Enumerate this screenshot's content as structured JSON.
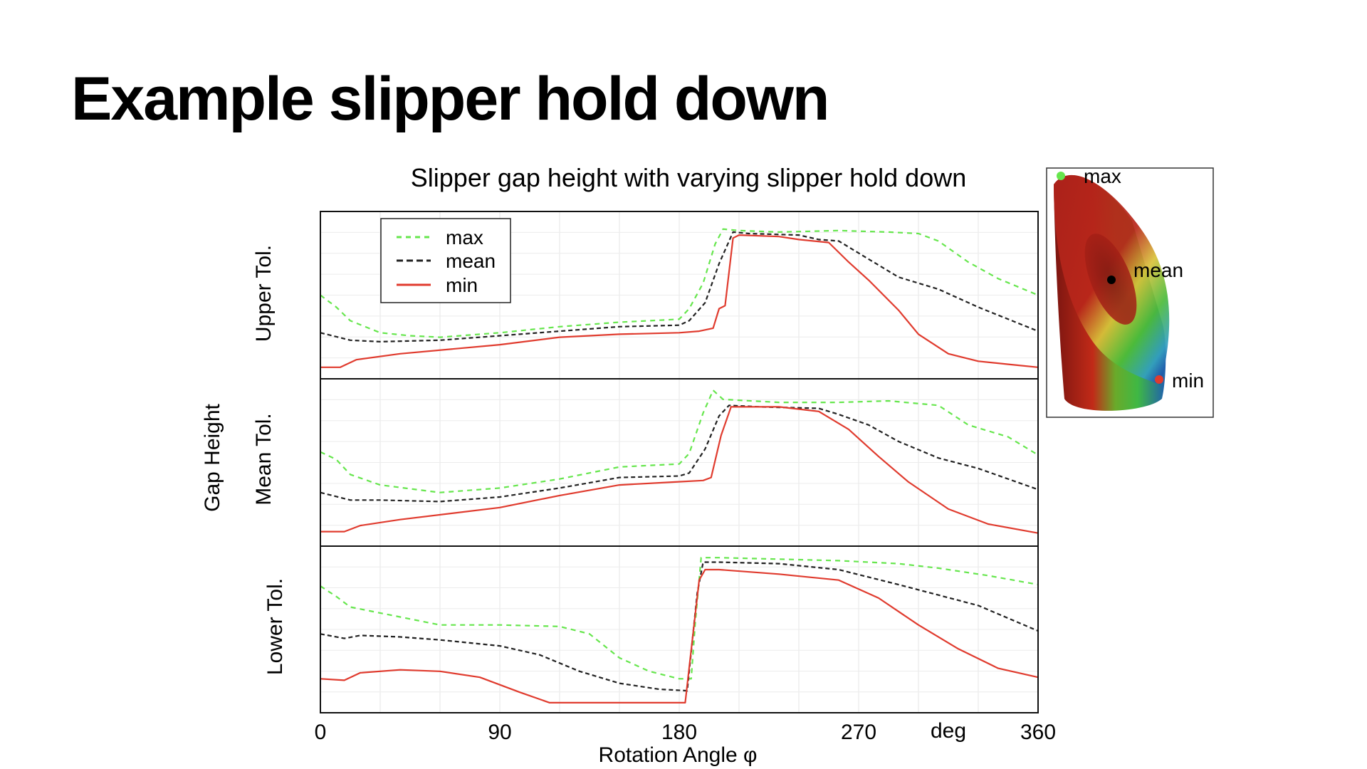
{
  "slide": {
    "title": "Example slipper hold down"
  },
  "chart_data": {
    "type": "line",
    "title": "Slipper gap height with varying slipper hold down",
    "xlabel": "Rotation Angle  φ",
    "ylabel": "Gap Height",
    "x_unit": "deg",
    "xlim": [
      0,
      360
    ],
    "x_ticks": [
      0,
      90,
      180,
      270,
      360
    ],
    "ylim": [
      0,
      1
    ],
    "y_ticks_labeled": false,
    "grid": true,
    "legend": {
      "placement": "top-left of first panel",
      "entries": [
        "max",
        "mean",
        "min"
      ]
    },
    "series_styles": {
      "max": {
        "color": "#66e64d",
        "dash": "7 6"
      },
      "mean": {
        "color": "#222222",
        "dash": "6 4"
      },
      "min": {
        "color": "#e03b2e",
        "dash": ""
      }
    },
    "panels": [
      {
        "label": "Upper  Tol.",
        "series": [
          {
            "name": "max",
            "points": [
              [
                0,
                0.5
              ],
              [
                8,
                0.42
              ],
              [
                15,
                0.33
              ],
              [
                30,
                0.25
              ],
              [
                45,
                0.23
              ],
              [
                60,
                0.22
              ],
              [
                90,
                0.25
              ],
              [
                120,
                0.29
              ],
              [
                150,
                0.32
              ],
              [
                180,
                0.34
              ],
              [
                185,
                0.41
              ],
              [
                192,
                0.58
              ],
              [
                198,
                0.84
              ],
              [
                202,
                0.94
              ],
              [
                210,
                0.93
              ],
              [
                230,
                0.92
              ],
              [
                260,
                0.93
              ],
              [
                285,
                0.92
              ],
              [
                300,
                0.91
              ],
              [
                310,
                0.86
              ],
              [
                325,
                0.72
              ],
              [
                340,
                0.61
              ],
              [
                360,
                0.5
              ]
            ]
          },
          {
            "name": "mean",
            "points": [
              [
                0,
                0.25
              ],
              [
                15,
                0.2
              ],
              [
                30,
                0.19
              ],
              [
                60,
                0.2
              ],
              [
                90,
                0.23
              ],
              [
                120,
                0.26
              ],
              [
                150,
                0.29
              ],
              [
                180,
                0.3
              ],
              [
                185,
                0.33
              ],
              [
                193,
                0.45
              ],
              [
                200,
                0.71
              ],
              [
                207,
                0.92
              ],
              [
                215,
                0.91
              ],
              [
                240,
                0.9
              ],
              [
                250,
                0.87
              ],
              [
                260,
                0.86
              ],
              [
                275,
                0.74
              ],
              [
                290,
                0.62
              ],
              [
                310,
                0.54
              ],
              [
                330,
                0.42
              ],
              [
                360,
                0.26
              ]
            ]
          },
          {
            "name": "min",
            "points": [
              [
                0,
                0.02
              ],
              [
                10,
                0.02
              ],
              [
                18,
                0.07
              ],
              [
                40,
                0.11
              ],
              [
                90,
                0.17
              ],
              [
                120,
                0.22
              ],
              [
                150,
                0.24
              ],
              [
                180,
                0.25
              ],
              [
                190,
                0.26
              ],
              [
                197,
                0.28
              ],
              [
                200,
                0.41
              ],
              [
                203,
                0.43
              ],
              [
                207,
                0.88
              ],
              [
                210,
                0.9
              ],
              [
                230,
                0.89
              ],
              [
                240,
                0.87
              ],
              [
                255,
                0.85
              ],
              [
                265,
                0.72
              ],
              [
                275,
                0.6
              ],
              [
                290,
                0.4
              ],
              [
                300,
                0.24
              ],
              [
                315,
                0.11
              ],
              [
                330,
                0.06
              ],
              [
                345,
                0.04
              ],
              [
                360,
                0.02
              ]
            ]
          }
        ]
      },
      {
        "label": "Mean  Tol.",
        "series": [
          {
            "name": "max",
            "points": [
              [
                0,
                0.57
              ],
              [
                8,
                0.52
              ],
              [
                15,
                0.42
              ],
              [
                30,
                0.35
              ],
              [
                60,
                0.3
              ],
              [
                90,
                0.33
              ],
              [
                120,
                0.39
              ],
              [
                150,
                0.47
              ],
              [
                180,
                0.49
              ],
              [
                185,
                0.56
              ],
              [
                192,
                0.83
              ],
              [
                197,
                0.98
              ],
              [
                202,
                0.92
              ],
              [
                230,
                0.9
              ],
              [
                260,
                0.9
              ],
              [
                285,
                0.91
              ],
              [
                310,
                0.88
              ],
              [
                325,
                0.75
              ],
              [
                345,
                0.67
              ],
              [
                360,
                0.55
              ]
            ]
          },
          {
            "name": "mean",
            "points": [
              [
                0,
                0.3
              ],
              [
                15,
                0.25
              ],
              [
                30,
                0.25
              ],
              [
                60,
                0.24
              ],
              [
                90,
                0.27
              ],
              [
                120,
                0.33
              ],
              [
                150,
                0.4
              ],
              [
                180,
                0.41
              ],
              [
                185,
                0.43
              ],
              [
                193,
                0.59
              ],
              [
                200,
                0.81
              ],
              [
                205,
                0.88
              ],
              [
                220,
                0.87
              ],
              [
                250,
                0.86
              ],
              [
                260,
                0.82
              ],
              [
                275,
                0.75
              ],
              [
                290,
                0.64
              ],
              [
                310,
                0.53
              ],
              [
                330,
                0.46
              ],
              [
                360,
                0.32
              ]
            ]
          },
          {
            "name": "min",
            "points": [
              [
                0,
                0.04
              ],
              [
                12,
                0.04
              ],
              [
                20,
                0.08
              ],
              [
                40,
                0.12
              ],
              [
                90,
                0.2
              ],
              [
                120,
                0.28
              ],
              [
                150,
                0.35
              ],
              [
                178,
                0.37
              ],
              [
                192,
                0.38
              ],
              [
                196,
                0.4
              ],
              [
                201,
                0.68
              ],
              [
                206,
                0.87
              ],
              [
                230,
                0.87
              ],
              [
                250,
                0.84
              ],
              [
                265,
                0.72
              ],
              [
                280,
                0.54
              ],
              [
                295,
                0.37
              ],
              [
                315,
                0.19
              ],
              [
                335,
                0.09
              ],
              [
                360,
                0.03
              ]
            ]
          }
        ]
      },
      {
        "label": "Lower  Tol.",
        "series": [
          {
            "name": "max",
            "points": [
              [
                0,
                0.79
              ],
              [
                8,
                0.72
              ],
              [
                15,
                0.65
              ],
              [
                30,
                0.61
              ],
              [
                60,
                0.53
              ],
              [
                90,
                0.53
              ],
              [
                120,
                0.52
              ],
              [
                135,
                0.47
              ],
              [
                150,
                0.31
              ],
              [
                165,
                0.22
              ],
              [
                180,
                0.17
              ],
              [
                186,
                0.17
              ],
              [
                188,
                0.54
              ],
              [
                191,
                0.98
              ],
              [
                200,
                0.98
              ],
              [
                230,
                0.97
              ],
              [
                260,
                0.96
              ],
              [
                290,
                0.94
              ],
              [
                310,
                0.91
              ],
              [
                335,
                0.86
              ],
              [
                360,
                0.8
              ]
            ]
          },
          {
            "name": "mean",
            "points": [
              [
                0,
                0.47
              ],
              [
                12,
                0.44
              ],
              [
                20,
                0.46
              ],
              [
                40,
                0.45
              ],
              [
                60,
                0.43
              ],
              [
                90,
                0.39
              ],
              [
                110,
                0.33
              ],
              [
                130,
                0.22
              ],
              [
                150,
                0.14
              ],
              [
                170,
                0.1
              ],
              [
                184,
                0.09
              ],
              [
                189,
                0.74
              ],
              [
                192,
                0.95
              ],
              [
                200,
                0.95
              ],
              [
                230,
                0.94
              ],
              [
                260,
                0.9
              ],
              [
                290,
                0.8
              ],
              [
                330,
                0.66
              ],
              [
                360,
                0.49
              ]
            ]
          },
          {
            "name": "min",
            "points": [
              [
                0,
                0.17
              ],
              [
                12,
                0.16
              ],
              [
                20,
                0.21
              ],
              [
                40,
                0.23
              ],
              [
                60,
                0.22
              ],
              [
                80,
                0.18
              ],
              [
                100,
                0.08
              ],
              [
                115,
                0.01
              ],
              [
                140,
                0.01
              ],
              [
                160,
                0.01
              ],
              [
                183,
                0.01
              ],
              [
                190,
                0.83
              ],
              [
                193,
                0.9
              ],
              [
                200,
                0.9
              ],
              [
                230,
                0.87
              ],
              [
                260,
                0.83
              ],
              [
                280,
                0.71
              ],
              [
                300,
                0.53
              ],
              [
                320,
                0.37
              ],
              [
                340,
                0.24
              ],
              [
                360,
                0.18
              ]
            ]
          }
        ]
      }
    ],
    "inset": {
      "labels": {
        "max": "max",
        "mean": "mean",
        "min": "min"
      },
      "marker_colors": {
        "max": "#66e64d",
        "mean": "#000000",
        "min": "#e03b2e"
      }
    }
  }
}
